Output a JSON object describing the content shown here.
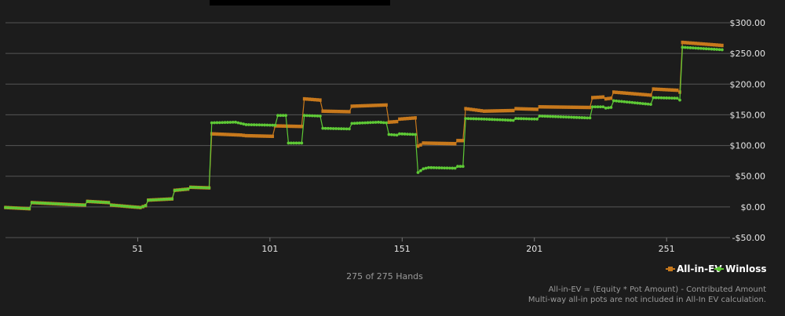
{
  "chart_data": {
    "type": "line",
    "title": "",
    "xlabel": "",
    "ylabel": "",
    "xlim": [
      1,
      275
    ],
    "ylim": [
      -50,
      300
    ],
    "x_ticks": [
      51,
      101,
      151,
      201,
      251
    ],
    "x_tick_labels": [
      "51",
      "101",
      "151",
      "201",
      "251"
    ],
    "y_ticks": [
      -50,
      0,
      50,
      100,
      150,
      200,
      250,
      300
    ],
    "y_tick_labels": [
      "-$50.00",
      "$0.00",
      "$50.00",
      "$100.00",
      "$150.00",
      "$200.00",
      "$250.00",
      "$300.00"
    ],
    "grid": true,
    "legend_position": "bottom-right",
    "series": [
      {
        "name": "All-in-EV",
        "color": "#c8791c",
        "points": [
          [
            1,
            -1
          ],
          [
            10,
            -3
          ],
          [
            11,
            7
          ],
          [
            25,
            4
          ],
          [
            31,
            3
          ],
          [
            32,
            9
          ],
          [
            40,
            7
          ],
          [
            41,
            3
          ],
          [
            49,
            0
          ],
          [
            52,
            -1
          ],
          [
            54,
            2
          ],
          [
            55,
            11
          ],
          [
            64,
            13
          ],
          [
            65,
            27
          ],
          [
            70,
            29
          ],
          [
            71,
            32
          ],
          [
            78,
            31
          ],
          [
            79,
            119
          ],
          [
            90,
            117
          ],
          [
            92,
            116
          ],
          [
            102,
            115
          ],
          [
            103,
            132
          ],
          [
            113,
            131
          ],
          [
            114,
            176
          ],
          [
            120,
            174
          ],
          [
            121,
            156
          ],
          [
            131,
            155
          ],
          [
            132,
            164
          ],
          [
            145,
            166
          ],
          [
            146,
            138
          ],
          [
            149,
            139
          ],
          [
            150,
            143
          ],
          [
            156,
            145
          ],
          [
            157,
            99
          ],
          [
            158,
            101
          ],
          [
            159,
            104
          ],
          [
            171,
            103
          ],
          [
            172,
            108
          ],
          [
            174,
            108
          ],
          [
            175,
            160
          ],
          [
            182,
            156
          ],
          [
            193,
            157
          ],
          [
            194,
            160
          ],
          [
            202,
            159
          ],
          [
            203,
            163
          ],
          [
            222,
            162
          ],
          [
            223,
            178
          ],
          [
            227,
            179
          ],
          [
            228,
            176
          ],
          [
            230,
            177
          ],
          [
            231,
            187
          ],
          [
            245,
            182
          ],
          [
            246,
            192
          ],
          [
            255,
            190
          ],
          [
            256,
            187
          ],
          [
            257,
            268
          ],
          [
            272,
            263
          ]
        ]
      },
      {
        "name": "Winloss",
        "color": "#5ec936",
        "points": [
          [
            1,
            -1
          ],
          [
            10,
            -3
          ],
          [
            11,
            7
          ],
          [
            25,
            4
          ],
          [
            31,
            3
          ],
          [
            32,
            9
          ],
          [
            40,
            7
          ],
          [
            41,
            3
          ],
          [
            49,
            0
          ],
          [
            52,
            -1
          ],
          [
            54,
            2
          ],
          [
            55,
            11
          ],
          [
            64,
            13
          ],
          [
            65,
            27
          ],
          [
            70,
            29
          ],
          [
            71,
            32
          ],
          [
            78,
            31
          ],
          [
            79,
            137
          ],
          [
            88,
            138
          ],
          [
            92,
            134
          ],
          [
            103,
            133
          ],
          [
            104,
            149
          ],
          [
            107,
            149
          ],
          [
            108,
            104
          ],
          [
            113,
            104
          ],
          [
            114,
            149
          ],
          [
            120,
            148
          ],
          [
            121,
            128
          ],
          [
            131,
            127
          ],
          [
            132,
            136
          ],
          [
            142,
            138
          ],
          [
            145,
            137
          ],
          [
            146,
            118
          ],
          [
            149,
            117
          ],
          [
            150,
            119
          ],
          [
            156,
            118
          ],
          [
            157,
            56
          ],
          [
            159,
            62
          ],
          [
            161,
            64
          ],
          [
            171,
            63
          ],
          [
            172,
            66
          ],
          [
            174,
            66
          ],
          [
            175,
            144
          ],
          [
            182,
            143
          ],
          [
            193,
            141
          ],
          [
            194,
            144
          ],
          [
            202,
            143
          ],
          [
            203,
            148
          ],
          [
            221,
            145
          ],
          [
            222,
            145
          ],
          [
            223,
            163
          ],
          [
            227,
            163
          ],
          [
            228,
            161
          ],
          [
            230,
            162
          ],
          [
            231,
            173
          ],
          [
            245,
            167
          ],
          [
            246,
            178
          ],
          [
            255,
            177
          ],
          [
            256,
            174
          ],
          [
            257,
            260
          ],
          [
            272,
            256
          ]
        ]
      }
    ]
  },
  "footer": {
    "hands_caption": "275 of 275 Hands",
    "note_line1": "All-in-EV = (Equity * Pot Amount) - Contributed Amount",
    "note_line2": "Multi-way all-in pots are not included in All-In EV calculation."
  }
}
